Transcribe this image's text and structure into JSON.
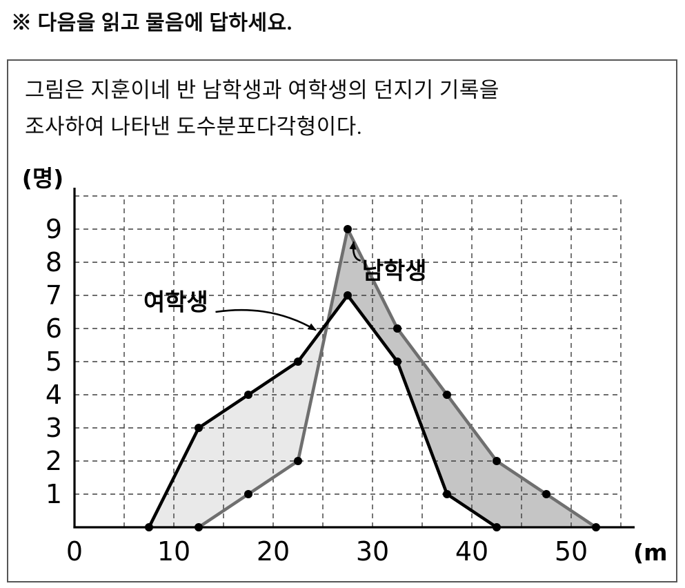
{
  "header": {
    "instruction": "※ 다음을 읽고 물음에 답하세요."
  },
  "problem": {
    "line1": "그림은 지훈이네 반 남학생과 여학생의 던지기 기록을",
    "line2": "조사하여 나타낸 도수분포다각형이다."
  },
  "chart_data": {
    "type": "line",
    "subtype": "frequency-distribution-polygon",
    "xlabel": "(m)",
    "ylabel": "(명)",
    "x_ticks": [
      0,
      10,
      20,
      30,
      40,
      50
    ],
    "y_ticks": [
      1,
      2,
      3,
      4,
      5,
      6,
      7,
      8,
      9
    ],
    "xlim": [
      0,
      55
    ],
    "ylim": [
      0,
      10
    ],
    "grid": "dashed",
    "series": [
      {
        "name": "남학생",
        "color": "#6f6f6f",
        "area_color": "#c5c5c5",
        "x": [
          12.5,
          17.5,
          22.5,
          27.5,
          32.5,
          37.5,
          42.5,
          47.5,
          52.5
        ],
        "values": [
          0,
          1,
          2,
          9,
          6,
          4,
          2,
          1,
          0
        ]
      },
      {
        "name": "여학생",
        "color": "#000000",
        "area_color": "#e9e9e9",
        "x": [
          7.5,
          12.5,
          17.5,
          22.5,
          27.5,
          32.5,
          37.5,
          42.5
        ],
        "values": [
          0,
          3,
          4,
          5,
          7,
          5,
          1,
          0
        ]
      }
    ],
    "annotations": [
      {
        "label": "남학생",
        "label_x": 32.2,
        "label_y": 7.5,
        "arrow": {
          "from": [
            28.8,
            8.05
          ],
          "ctrl": [
            27.9,
            8.1
          ],
          "to": [
            28.1,
            8.62
          ]
        }
      },
      {
        "label": "여학생",
        "label_x": 10.2,
        "label_y": 6.55,
        "arrow": {
          "from": [
            14.2,
            6.5
          ],
          "ctrl": [
            19.8,
            6.75
          ],
          "to": [
            24.3,
            5.95
          ]
        }
      }
    ]
  }
}
